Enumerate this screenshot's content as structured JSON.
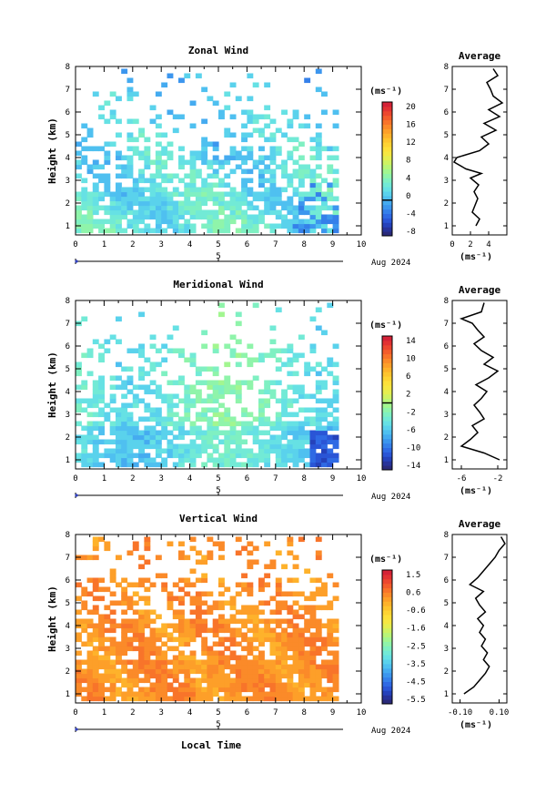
{
  "date_label": "Aug 2024",
  "day_marker": "5",
  "xlabel": "Local Time",
  "ylabel": "Height (km)",
  "unit": "(ms⁻¹)",
  "avg_title": "Average",
  "chart_data": [
    {
      "type": "heatmap",
      "title": "Zonal Wind",
      "x_ticks": [
        0,
        1,
        2,
        3,
        4,
        5,
        6,
        7,
        8,
        9,
        10
      ],
      "xlim": [
        0,
        10
      ],
      "y_ticks": [
        1,
        2,
        3,
        4,
        5,
        6,
        7,
        8
      ],
      "ylim": [
        0.6,
        8
      ],
      "colorbar": {
        "ticks": [
          "-8",
          "-4",
          "0",
          "4",
          "8",
          "12",
          "16",
          "20"
        ],
        "min": -8,
        "max": 22,
        "zero_line": 0
      },
      "field_description": "mostly 0 to 6 m/s (light blue/cyan), few points below 0",
      "field_max_height_km": 7.8,
      "average_profile": {
        "xlim": [
          0,
          6
        ],
        "x_ticks": [
          "0",
          "2",
          "4"
        ],
        "heights": [
          1.0,
          1.3,
          1.6,
          1.9,
          2.2,
          2.5,
          2.8,
          3.1,
          3.3,
          3.5,
          3.8,
          4.0,
          4.3,
          4.6,
          4.9,
          5.2,
          5.5,
          5.8,
          6.1,
          6.4,
          6.7,
          7.0,
          7.3,
          7.6,
          7.9
        ],
        "values": [
          2.6,
          3.0,
          2.2,
          2.5,
          2.8,
          2.4,
          2.9,
          2.0,
          3.2,
          1.5,
          0.2,
          0.5,
          3.0,
          4.0,
          3.2,
          4.8,
          3.5,
          5.2,
          4.0,
          5.5,
          4.5,
          4.2,
          3.8,
          5.0,
          4.5
        ]
      }
    },
    {
      "type": "heatmap",
      "title": "Meridional Wind",
      "x_ticks": [
        0,
        1,
        2,
        3,
        4,
        5,
        6,
        7,
        8,
        9,
        10
      ],
      "xlim": [
        0,
        10
      ],
      "y_ticks": [
        1,
        2,
        3,
        4,
        5,
        6,
        7,
        8
      ],
      "ylim": [
        0.6,
        8
      ],
      "colorbar": {
        "ticks": [
          "-14",
          "-10",
          "-6",
          "-2",
          "2",
          "6",
          "10",
          "14"
        ],
        "min": -16,
        "max": 16,
        "zero_line": 0
      },
      "field_description": "mostly -2 to -8 m/s (cyan/blue), down to -12 near 8-9 LT low altitude",
      "field_max_height_km": 7.8,
      "average_profile": {
        "xlim": [
          -7,
          -1
        ],
        "x_ticks": [
          "-6",
          "-2"
        ],
        "heights": [
          1.0,
          1.3,
          1.6,
          1.9,
          2.2,
          2.5,
          2.8,
          3.1,
          3.4,
          3.7,
          4.0,
          4.3,
          4.6,
          4.9,
          5.2,
          5.5,
          5.8,
          6.1,
          6.4,
          6.7,
          7.0,
          7.2,
          7.5,
          7.9
        ],
        "values": [
          -1.8,
          -3.5,
          -6.0,
          -5.0,
          -4.2,
          -4.8,
          -3.5,
          -4.0,
          -4.6,
          -3.8,
          -3.2,
          -4.4,
          -3.0,
          -2.0,
          -3.5,
          -2.5,
          -3.8,
          -4.6,
          -3.5,
          -4.2,
          -4.8,
          -6.0,
          -3.8,
          -3.5
        ]
      }
    },
    {
      "type": "heatmap",
      "title": "Vertical Wind",
      "x_ticks": [
        0,
        1,
        2,
        3,
        4,
        5,
        6,
        7,
        8,
        9,
        10
      ],
      "xlim": [
        0,
        10
      ],
      "y_ticks": [
        1,
        2,
        3,
        4,
        5,
        6,
        7,
        8
      ],
      "ylim": [
        0.6,
        8
      ],
      "colorbar": {
        "ticks": [
          "-5.5",
          "-4.5",
          "-3.5",
          "-2.5",
          "-1.6",
          "-0.6",
          "0.6",
          "1.5"
        ],
        "min": -6,
        "max": 2,
        "zero_line": null
      },
      "field_description": "mostly 0.3 to 1.0 m/s (yellow/orange)",
      "field_max_height_km": 7.9,
      "average_profile": {
        "xlim": [
          -0.14,
          0.14
        ],
        "x_ticks": [
          "-0.10",
          "0.10"
        ],
        "heights": [
          1.0,
          1.3,
          1.6,
          1.9,
          2.2,
          2.5,
          2.8,
          3.1,
          3.4,
          3.7,
          4.0,
          4.3,
          4.6,
          4.9,
          5.2,
          5.5,
          5.8,
          6.1,
          6.4,
          6.7,
          7.0,
          7.3,
          7.6,
          7.9
        ],
        "values": [
          -0.08,
          -0.03,
          0.0,
          0.03,
          0.05,
          0.02,
          0.04,
          0.01,
          0.03,
          0.0,
          0.02,
          -0.01,
          0.03,
          0.0,
          -0.02,
          0.02,
          -0.05,
          -0.01,
          0.02,
          0.05,
          0.08,
          0.1,
          0.13,
          0.11
        ]
      }
    }
  ]
}
